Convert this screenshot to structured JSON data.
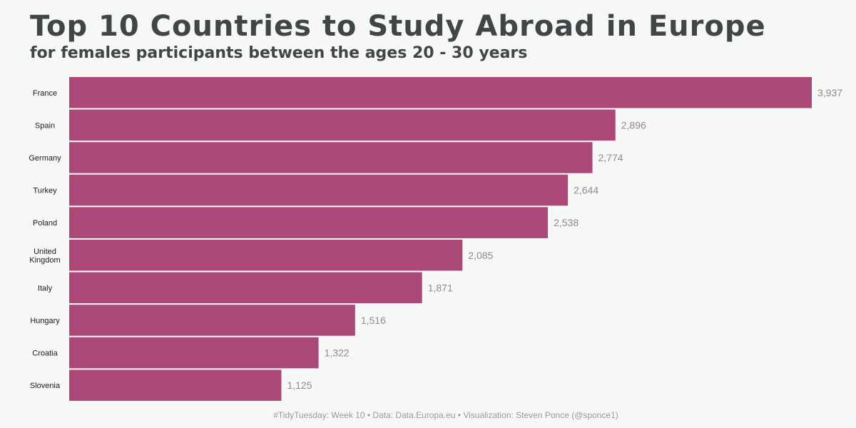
{
  "chart_data": {
    "type": "bar",
    "orientation": "horizontal",
    "title": "Top 10 Countries to Study Abroad in Europe",
    "subtitle": "for females participants between the ages 20 - 30 years",
    "categories": [
      "France",
      "Spain",
      "Germany",
      "Turkey",
      "Poland",
      "United Kingdom",
      "Italy",
      "Hungary",
      "Croatia",
      "Slovenia"
    ],
    "values": [
      3937,
      2896,
      2774,
      2644,
      2538,
      2085,
      1871,
      1516,
      1322,
      1125
    ],
    "value_labels": [
      "3,937",
      "2,896",
      "2,774",
      "2,644",
      "2,538",
      "2,085",
      "1,871",
      "1,516",
      "1,322",
      "1,125"
    ],
    "xlim": [
      0,
      3937
    ],
    "grid": false,
    "bar_color": "#ab4878",
    "caption": "#TidyTuesday: Week 10 • Data: Data.Europa.eu • Visualization: Steven Ponce (@sponce1)"
  }
}
